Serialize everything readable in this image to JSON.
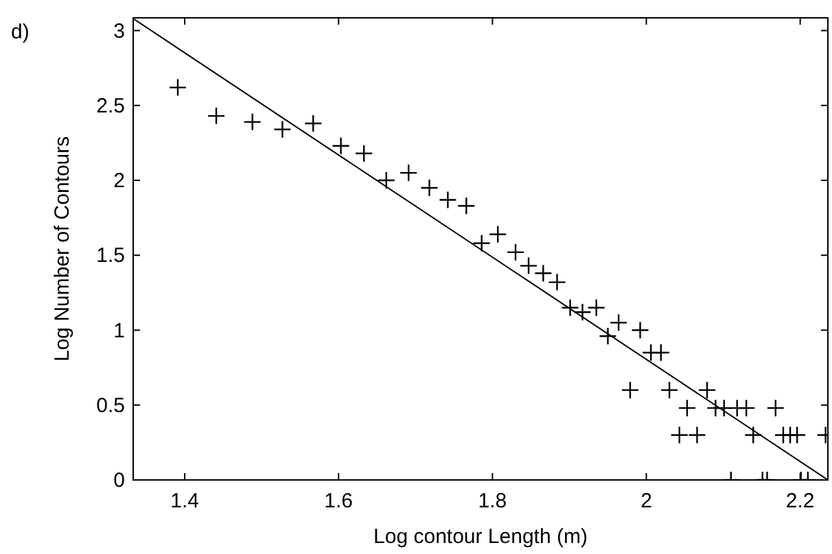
{
  "chart_data": {
    "type": "scatter",
    "xlabel": "Log contour Length (m)",
    "ylabel": "Log Number of Contours",
    "annotations": [
      "d)"
    ],
    "xlim": [
      1.333,
      2.236
    ],
    "ylim": [
      0,
      3.085
    ],
    "xticks": [
      1.4,
      1.6,
      1.8,
      2,
      2.2
    ],
    "yticks": [
      0,
      0.5,
      1,
      1.5,
      2,
      2.5,
      3
    ],
    "grid": false,
    "marker": "cross",
    "series": [
      {
        "color": "#000000",
        "x": [
          1.391,
          1.441,
          1.488,
          1.527,
          1.567,
          1.603,
          1.633,
          1.662,
          1.691,
          1.718,
          1.742,
          1.766,
          1.786,
          1.807,
          1.83,
          1.847,
          1.866,
          1.884,
          1.901,
          1.917,
          1.935,
          1.95,
          1.964,
          1.979,
          1.992,
          2.006,
          2.019,
          2.03,
          2.043,
          2.053,
          2.066,
          2.079,
          2.09,
          2.101,
          2.118,
          2.13,
          2.139,
          2.168,
          2.178,
          2.187,
          2.196,
          2.11,
          2.151,
          2.157,
          2.201,
          2.21,
          2.233
        ],
        "values": [
          2.62,
          2.43,
          2.39,
          2.34,
          2.38,
          2.23,
          2.18,
          2.0,
          2.05,
          1.95,
          1.87,
          1.83,
          1.58,
          1.64,
          1.52,
          1.43,
          1.38,
          1.32,
          1.15,
          1.12,
          1.15,
          0.96,
          1.05,
          0.6,
          1.0,
          0.85,
          0.85,
          0.6,
          0.3,
          0.48,
          0.3,
          0.6,
          0.48,
          0.48,
          0.48,
          0.48,
          0.3,
          0.48,
          0.3,
          0.3,
          0.3,
          0,
          0,
          0,
          0,
          0,
          0.3
        ]
      },
      {
        "type": "line",
        "color": "#000000",
        "x": [
          1.333,
          2.236
        ],
        "values": [
          3.08,
          0
        ],
        "line_style": "solid",
        "marker": "none"
      }
    ]
  }
}
